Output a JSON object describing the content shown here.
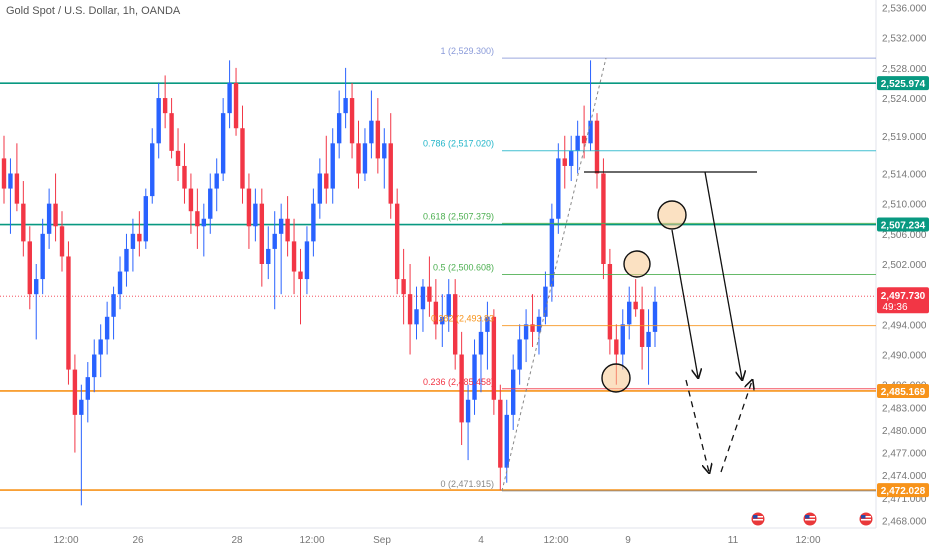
{
  "header": {
    "symbol_title": "Gold Spot / U.S. Dollar, 1h, OANDA"
  },
  "colors": {
    "up": "#2962ff",
    "down": "#f23645",
    "level_green": "#089981",
    "level_orange": "#f7931a",
    "fib_blue_line": "#8a9ad9",
    "fib_teal": "#22ab94"
  },
  "chart_data": {
    "type": "candlestick",
    "title": "Gold Spot / U.S. Dollar, 1h, OANDA",
    "ylim": [
      2467,
      2537
    ],
    "y_ticks": [
      "2,536.000",
      "2,532.000",
      "2,528.000",
      "2,524.000",
      "2,519.000",
      "2,514.000",
      "2,510.000",
      "2,506.000",
      "2,502.000",
      "2,498.000",
      "2,494.000",
      "2,490.000",
      "2,486.000",
      "2,483.000",
      "2,480.000",
      "2,477.000",
      "2,474.000",
      "2,471.000",
      "2,468.000"
    ],
    "x_ticks": [
      "12:00",
      "26",
      "28",
      "12:00",
      "Sep",
      "4",
      "12:00",
      "9",
      "11",
      "12:00"
    ],
    "horizontal_levels": [
      {
        "value": 2525.974,
        "label": "2,525.974",
        "color": "#089981"
      },
      {
        "value": 2507.234,
        "label": "2,507.234",
        "color": "#089981"
      },
      {
        "value": 2485.169,
        "label": "2,485.169",
        "color": "#f7931a"
      },
      {
        "value": 2472.028,
        "label": "2,472.028",
        "color": "#f7931a"
      }
    ],
    "current_price": {
      "value": 2497.73,
      "label": "2,497.730",
      "countdown": "49:36"
    },
    "fib_levels": [
      {
        "ratio": "1",
        "value": 2529.3,
        "label": "1 (2,529.300)",
        "color": "#8a9ad9"
      },
      {
        "ratio": "0.786",
        "value": 2517.02,
        "label": "0.786 (2,517.020)",
        "color": "#22b5c9"
      },
      {
        "ratio": "0.618",
        "value": 2507.379,
        "label": "0.618 (2,507.379)",
        "color": "#4caf50"
      },
      {
        "ratio": "0.5",
        "value": 2500.608,
        "label": "0.5 (2,500.608)",
        "color": "#4caf50"
      },
      {
        "ratio": "0.382",
        "value": 2493.83,
        "label": "0.382 (2,493.83",
        "color": "#f7931a"
      },
      {
        "ratio": "0.236",
        "value": 2485.458,
        "label": "0.236 (2,485.458)",
        "color": "#f23645"
      },
      {
        "ratio": "0",
        "value": 2471.915,
        "label": "0 (2,471.915)",
        "color": "#888888"
      }
    ],
    "series": [
      {
        "name": "",
        "values": [
          [
            2516,
            2519,
            2510,
            2512
          ],
          [
            2512,
            2516,
            2506,
            2514
          ],
          [
            2514,
            2518,
            2509,
            2510
          ],
          [
            2510,
            2513,
            2503,
            2505
          ],
          [
            2505,
            2507,
            2496,
            2498
          ],
          [
            2498,
            2502,
            2492,
            2500
          ],
          [
            2500,
            2508,
            2498,
            2506
          ],
          [
            2506,
            2512,
            2504,
            2510
          ],
          [
            2510,
            2514,
            2505,
            2507
          ],
          [
            2507,
            2509,
            2501,
            2503
          ],
          [
            2503,
            2505,
            2486,
            2488
          ],
          [
            2488,
            2490,
            2477,
            2482
          ],
          [
            2482,
            2486,
            2470,
            2484
          ],
          [
            2484,
            2489,
            2481,
            2487
          ],
          [
            2487,
            2492,
            2485,
            2490
          ],
          [
            2490,
            2494,
            2487,
            2492
          ],
          [
            2492,
            2497,
            2490,
            2495
          ],
          [
            2495,
            2499,
            2492,
            2498
          ],
          [
            2498,
            2503,
            2496,
            2501
          ],
          [
            2501,
            2506,
            2499,
            2504
          ],
          [
            2504,
            2508,
            2501,
            2506
          ],
          [
            2506,
            2509,
            2503,
            2505
          ],
          [
            2505,
            2512,
            2504,
            2511
          ],
          [
            2511,
            2520,
            2510,
            2518
          ],
          [
            2518,
            2526,
            2516,
            2524
          ],
          [
            2524,
            2527,
            2520,
            2522
          ],
          [
            2522,
            2524,
            2516,
            2517
          ],
          [
            2517,
            2520,
            2513,
            2515
          ],
          [
            2515,
            2518,
            2510,
            2512
          ],
          [
            2512,
            2514,
            2506,
            2509
          ],
          [
            2509,
            2512,
            2504,
            2507
          ],
          [
            2507,
            2510,
            2503,
            2508
          ],
          [
            2508,
            2514,
            2506,
            2512
          ],
          [
            2512,
            2516,
            2509,
            2514
          ],
          [
            2514,
            2524,
            2513,
            2522
          ],
          [
            2522,
            2529,
            2520,
            2526
          ],
          [
            2526,
            2528,
            2519,
            2520
          ],
          [
            2520,
            2523,
            2510,
            2512
          ],
          [
            2512,
            2514,
            2504,
            2507
          ],
          [
            2507,
            2512,
            2505,
            2510
          ],
          [
            2510,
            2512,
            2499,
            2502
          ],
          [
            2502,
            2507,
            2500,
            2504
          ],
          [
            2504,
            2509,
            2496,
            2506
          ],
          [
            2506,
            2510,
            2498,
            2508
          ],
          [
            2508,
            2511,
            2503,
            2505
          ],
          [
            2505,
            2508,
            2498,
            2501
          ],
          [
            2501,
            2504,
            2494,
            2500
          ],
          [
            2500,
            2507,
            2498,
            2505
          ],
          [
            2505,
            2512,
            2503,
            2510
          ],
          [
            2510,
            2516,
            2508,
            2514
          ],
          [
            2514,
            2519,
            2510,
            2512
          ],
          [
            2512,
            2520,
            2510,
            2518
          ],
          [
            2518,
            2525,
            2516,
            2522
          ],
          [
            2522,
            2528,
            2520,
            2524
          ],
          [
            2524,
            2526,
            2516,
            2518
          ],
          [
            2518,
            2521,
            2512,
            2514
          ],
          [
            2514,
            2520,
            2513,
            2518
          ],
          [
            2518,
            2525,
            2516,
            2521
          ],
          [
            2521,
            2524,
            2514,
            2516
          ],
          [
            2516,
            2520,
            2512,
            2518
          ],
          [
            2518,
            2522,
            2508,
            2510
          ],
          [
            2510,
            2512,
            2498,
            2500
          ],
          [
            2500,
            2504,
            2494,
            2498
          ],
          [
            2498,
            2502,
            2490,
            2494
          ],
          [
            2494,
            2499,
            2492,
            2496
          ],
          [
            2496,
            2500,
            2493,
            2499
          ],
          [
            2499,
            2503,
            2495,
            2497
          ],
          [
            2497,
            2500,
            2492,
            2494
          ],
          [
            2494,
            2498,
            2491,
            2495
          ],
          [
            2495,
            2500,
            2493,
            2498
          ],
          [
            2498,
            2500,
            2488,
            2490
          ],
          [
            2490,
            2493,
            2478,
            2481
          ],
          [
            2481,
            2486,
            2476,
            2484
          ],
          [
            2484,
            2492,
            2482,
            2490
          ],
          [
            2490,
            2495,
            2485,
            2493
          ],
          [
            2493,
            2497,
            2488,
            2495
          ],
          [
            2495,
            2496,
            2482,
            2484
          ],
          [
            2484,
            2486,
            2472,
            2475
          ],
          [
            2475,
            2484,
            2473,
            2482
          ],
          [
            2482,
            2490,
            2480,
            2488
          ],
          [
            2488,
            2494,
            2486,
            2492
          ],
          [
            2492,
            2496,
            2489,
            2494
          ],
          [
            2494,
            2498,
            2491,
            2493
          ],
          [
            2493,
            2496,
            2490,
            2495
          ],
          [
            2495,
            2501,
            2494,
            2499
          ],
          [
            2499,
            2510,
            2497,
            2508
          ],
          [
            2508,
            2518,
            2506,
            2516
          ],
          [
            2516,
            2519,
            2512,
            2515
          ],
          [
            2515,
            2519,
            2513,
            2517
          ],
          [
            2517,
            2521,
            2514,
            2519
          ],
          [
            2519,
            2523,
            2516,
            2518
          ],
          [
            2518,
            2529,
            2517,
            2521
          ],
          [
            2521,
            2522,
            2512,
            2514
          ],
          [
            2514,
            2516,
            2500,
            2502
          ],
          [
            2502,
            2504,
            2490,
            2492
          ],
          [
            2492,
            2494,
            2486,
            2490
          ],
          [
            2490,
            2496,
            2488,
            2494
          ],
          [
            2494,
            2499,
            2492,
            2497
          ],
          [
            2497,
            2500,
            2495,
            2496
          ],
          [
            2496,
            2499,
            2488,
            2491
          ],
          [
            2491,
            2496,
            2486,
            2493
          ],
          [
            2493,
            2499,
            2491,
            2497
          ]
        ]
      }
    ]
  }
}
